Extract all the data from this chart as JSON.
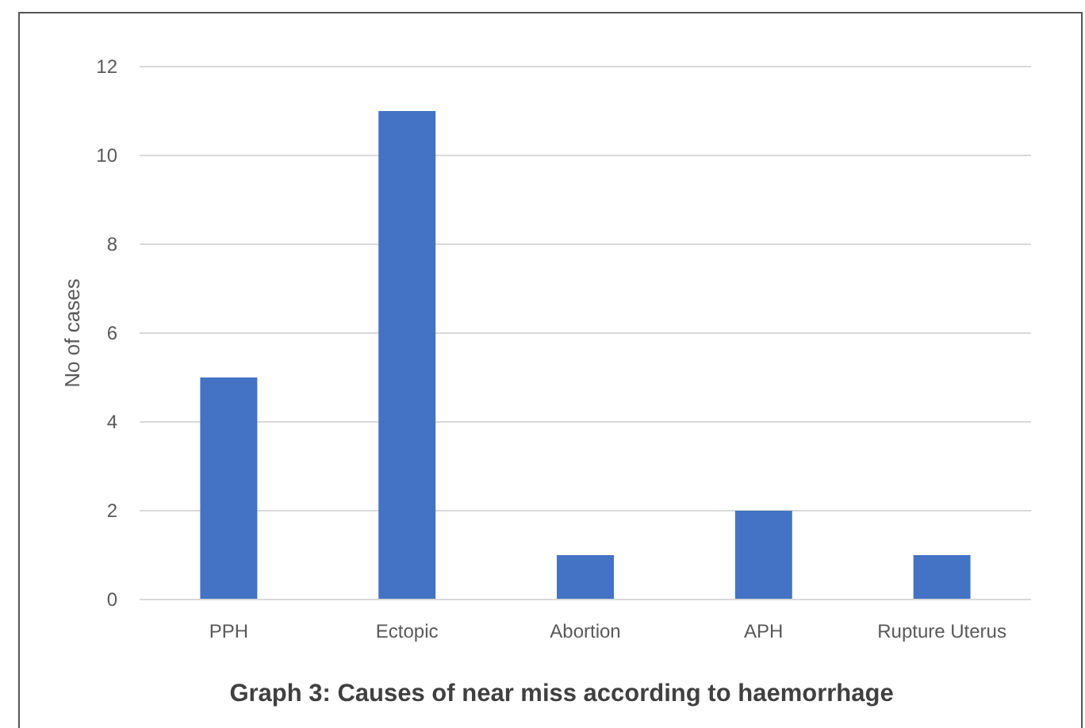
{
  "chart_data": {
    "type": "bar",
    "title": "Graph 3: Causes of near miss according to haemorrhage",
    "ylabel": "No of cases",
    "categories": [
      "PPH",
      "Ectopic",
      "Abortion",
      "APH",
      "Rupture Uterus"
    ],
    "values": [
      5,
      11,
      1,
      2,
      1
    ],
    "color": "#4472c4",
    "ylim": [
      0,
      12
    ],
    "yticks": [
      0,
      2,
      4,
      6,
      8,
      10,
      12
    ],
    "grid": "y"
  }
}
